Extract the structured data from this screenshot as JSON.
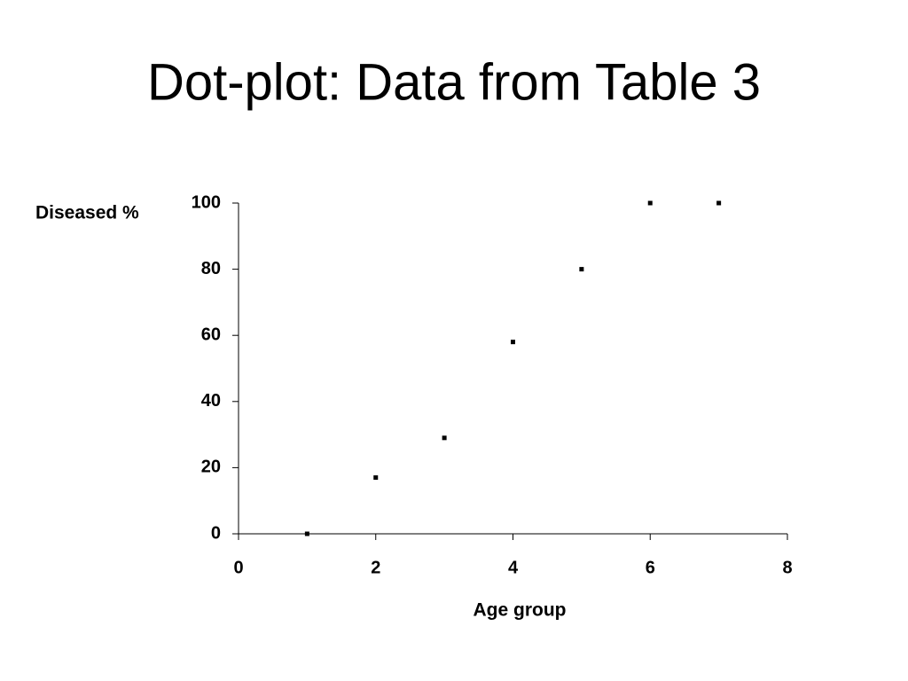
{
  "chart_data": {
    "type": "scatter",
    "title": "Dot-plot: Data from Table 3",
    "x_label": "Age group",
    "y_label": "Diseased %",
    "x": [
      1,
      2,
      3,
      4,
      5,
      6,
      7
    ],
    "values": [
      0,
      17,
      29,
      58,
      80,
      100,
      100
    ],
    "color": "#000000",
    "xlim": [
      0,
      8
    ],
    "xticks": [
      0,
      2,
      4,
      6,
      8
    ],
    "ylim": [
      0,
      100
    ],
    "yticks": [
      0,
      20,
      40,
      60,
      80,
      100
    ],
    "grid": false
  }
}
